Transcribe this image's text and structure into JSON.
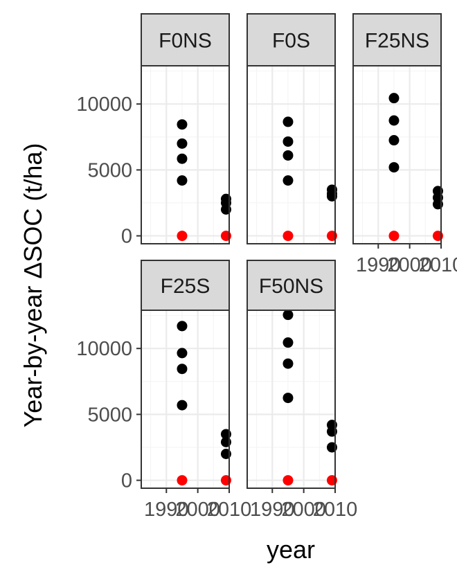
{
  "chart_data": {
    "type": "scatter",
    "facet_layout": "wrap",
    "xlabel": "year",
    "ylabel": "Year-by-year ΔSOC (t/ha)",
    "xlim": [
      1982,
      2010
    ],
    "ylim": [
      -600,
      12900
    ],
    "x_ticks": [
      1990,
      2000,
      2010
    ],
    "x_tick_labels": [
      "1990",
      "2000",
      "2010"
    ],
    "y_ticks": [
      0,
      5000,
      10000
    ],
    "y_tick_labels": [
      "0",
      "5000",
      "10000"
    ],
    "grid": true,
    "point_colors": {
      "black": "#000000",
      "red": "#ff0000"
    },
    "panels": [
      {
        "name": "F0NS",
        "black": [
          [
            1995,
            8450
          ],
          [
            1995,
            7000
          ],
          [
            1995,
            5850
          ],
          [
            1995,
            4200
          ],
          [
            2009,
            2800
          ],
          [
            2009,
            2500
          ],
          [
            2009,
            2000
          ]
        ],
        "red": [
          [
            1995,
            0
          ],
          [
            2009,
            0
          ]
        ]
      },
      {
        "name": "F0S",
        "black": [
          [
            1995,
            8650
          ],
          [
            1995,
            7150
          ],
          [
            1995,
            6100
          ],
          [
            1995,
            4200
          ],
          [
            2009,
            3500
          ],
          [
            2009,
            3200
          ],
          [
            2009,
            3000
          ]
        ],
        "red": [
          [
            1995,
            0
          ],
          [
            2009,
            0
          ]
        ]
      },
      {
        "name": "F25NS",
        "black": [
          [
            1995,
            10450
          ],
          [
            1995,
            8750
          ],
          [
            1995,
            7250
          ],
          [
            1995,
            5200
          ],
          [
            2009,
            3400
          ],
          [
            2009,
            2900
          ],
          [
            2009,
            2400
          ]
        ],
        "red": [
          [
            1995,
            0
          ],
          [
            2009,
            0
          ]
        ]
      },
      {
        "name": "F25S",
        "black": [
          [
            1995,
            11700
          ],
          [
            1995,
            9650
          ],
          [
            1995,
            8450
          ],
          [
            1995,
            5700
          ],
          [
            2009,
            3500
          ],
          [
            2009,
            2900
          ],
          [
            2009,
            2000
          ]
        ],
        "red": [
          [
            1995,
            0
          ],
          [
            2009,
            0
          ]
        ]
      },
      {
        "name": "F50NS",
        "black": [
          [
            1995,
            12550
          ],
          [
            1995,
            10450
          ],
          [
            1995,
            8850
          ],
          [
            1995,
            6250
          ],
          [
            2009,
            4200
          ],
          [
            2009,
            3700
          ],
          [
            2009,
            2500
          ]
        ],
        "red": [
          [
            1995,
            0
          ],
          [
            2009,
            0
          ]
        ]
      }
    ]
  }
}
